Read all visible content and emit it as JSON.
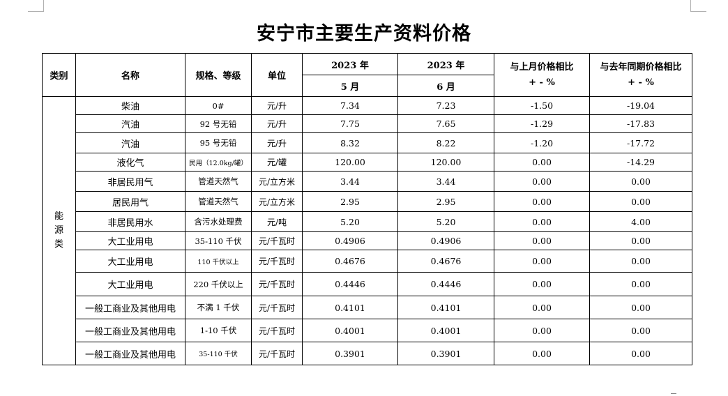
{
  "title": "安宁市主要生产资料价格",
  "headers": {
    "category": "类别",
    "name": "名称",
    "spec": "规格、等级",
    "unit": "单位",
    "year1": "2023 年",
    "month1": "5 月",
    "year2": "2023 年",
    "month2": "6 月",
    "mom_line1": "与上月价格相比",
    "mom_line2": "+ - %",
    "yoy_line1": "与去年同期价格相比",
    "yoy_line2": "+ - %"
  },
  "category": {
    "label_chars": [
      "能",
      "源",
      "类"
    ]
  },
  "rows": [
    {
      "name": "柴油",
      "spec": "0#",
      "unit": "元/升",
      "may": "7.34",
      "jun": "7.23",
      "mom": "-1.50",
      "yoy": "-19.04"
    },
    {
      "name": "汽油",
      "spec": "92 号无铅",
      "unit": "元/升",
      "may": "7.75",
      "jun": "7.65",
      "mom": "-1.29",
      "yoy": "-17.83"
    },
    {
      "name": "汽油",
      "spec": "95 号无铅",
      "unit": "元/升",
      "may": "8.32",
      "jun": "8.22",
      "mom": "-1.20",
      "yoy": "-17.72"
    },
    {
      "name": "液化气",
      "spec": "民用（12.0kg/罐）",
      "unit": "元/罐",
      "may": "120.00",
      "jun": "120.00",
      "mom": "0.00",
      "yoy": "-14.29"
    },
    {
      "name": "非居民用气",
      "spec": "管道天然气",
      "unit": "元/立方米",
      "may": "3.44",
      "jun": "3.44",
      "mom": "0.00",
      "yoy": "0.00"
    },
    {
      "name": "居民用气",
      "spec": "管道天然气",
      "unit": "元/立方米",
      "may": "2.95",
      "jun": "2.95",
      "mom": "0.00",
      "yoy": "0.00"
    },
    {
      "name": "非居民用水",
      "spec": "含污水处理费",
      "unit": "元/吨",
      "may": "5.20",
      "jun": "5.20",
      "mom": "0.00",
      "yoy": "4.00"
    },
    {
      "name": "大工业用电",
      "spec": "35-110 千伏",
      "unit": "元/千瓦时",
      "may": "0.4906",
      "jun": "0.4906",
      "mom": "0.00",
      "yoy": "0.00"
    },
    {
      "name": "大工业用电",
      "spec": "110 千伏以上",
      "unit": "元/千瓦时",
      "may": "0.4676",
      "jun": "0.4676",
      "mom": "0.00",
      "yoy": "0.00"
    },
    {
      "name": "大工业用电",
      "spec": "220 千伏以上",
      "unit": "元/千瓦时",
      "may": "0.4446",
      "jun": "0.4446",
      "mom": "0.00",
      "yoy": "0.00"
    },
    {
      "name": "一般工商业及其他用电",
      "spec": "不满 1 千伏",
      "unit": "元/千瓦时",
      "may": "0.4101",
      "jun": "0.4101",
      "mom": "0.00",
      "yoy": "0.00"
    },
    {
      "name": "一般工商业及其他用电",
      "spec": "1-10 千伏",
      "unit": "元/千瓦时",
      "may": "0.4001",
      "jun": "0.4001",
      "mom": "0.00",
      "yoy": "0.00"
    },
    {
      "name": "一般工商业及其他用电",
      "spec": "35-110 千伏",
      "unit": "元/千瓦时",
      "may": "0.3901",
      "jun": "0.3901",
      "mom": "0.00",
      "yoy": "0.00"
    }
  ]
}
